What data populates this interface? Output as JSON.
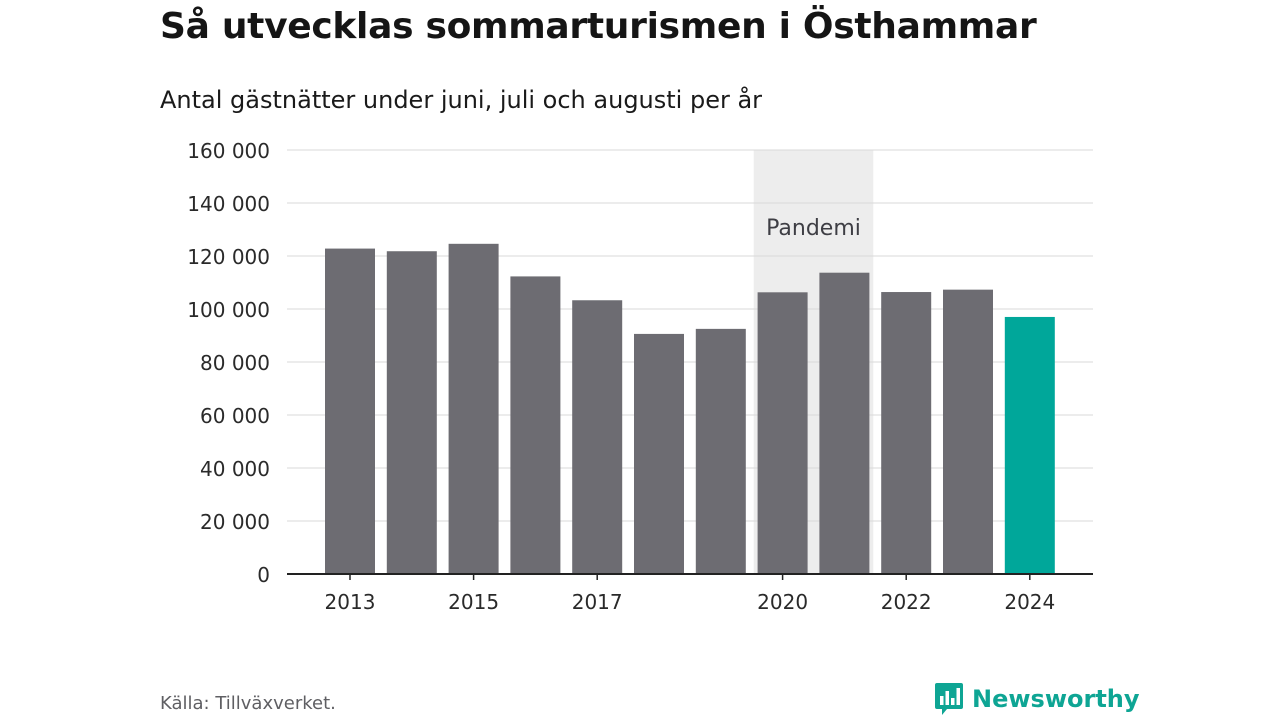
{
  "header": {
    "title": "Så utvecklas sommarturismen i Östhammar",
    "subtitle": "Antal gästnätter under juni, juli och augusti per år"
  },
  "chart_data": {
    "type": "bar",
    "categories": [
      "2013",
      "2014",
      "2015",
      "2016",
      "2017",
      "2018",
      "2019",
      "2020",
      "2021",
      "2022",
      "2023",
      "2024"
    ],
    "values": [
      122800,
      121800,
      124600,
      112300,
      103300,
      90600,
      92500,
      106300,
      113700,
      106400,
      107300,
      97000
    ],
    "x_tick_labels": [
      "2013",
      "2015",
      "2017",
      "2020",
      "2022",
      "2024"
    ],
    "y_ticks": [
      0,
      20000,
      40000,
      60000,
      80000,
      100000,
      120000,
      140000,
      160000
    ],
    "y_tick_labels": [
      "0",
      "20 000",
      "40 000",
      "60 000",
      "80 000",
      "100 000",
      "120 000",
      "140 000",
      "160 000"
    ],
    "ylim": [
      0,
      160000
    ],
    "grid": true,
    "highlight_category": "2024",
    "annotation": {
      "label": "Pandemi",
      "start": "2020",
      "end": "2021"
    },
    "xlabel": "",
    "ylabel": ""
  },
  "colors": {
    "bar": "#6d6c72",
    "highlight": "#00a79a",
    "band": "#ededed",
    "grid": "#d9d9d9",
    "axis": "#222222",
    "annotation_text": "#3e3e44"
  },
  "footer": {
    "source": "Källa: Tillväxverket.",
    "brand": "Newsworthy",
    "brand_icon": "newsworthy-logo-icon"
  }
}
